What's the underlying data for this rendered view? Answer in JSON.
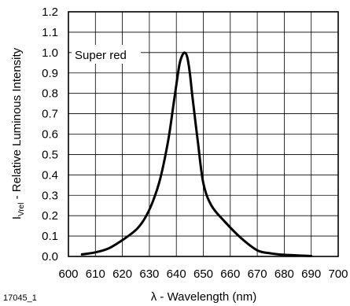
{
  "figure_id": "17045_1",
  "chart_data": {
    "type": "line",
    "title": "",
    "xlabel": "λ - Wavelength (nm)",
    "ylabel_main": "I",
    "ylabel_sub": "Vrel",
    "ylabel_rest": " - Relative Luminous Intensity",
    "xlim": [
      600,
      700
    ],
    "ylim": [
      0,
      1.2
    ],
    "grid": true,
    "x_ticks": [
      "600",
      "610",
      "620",
      "630",
      "640",
      "650",
      "660",
      "670",
      "680",
      "690",
      "700"
    ],
    "y_ticks": [
      "0.0",
      "0.1",
      "0.2",
      "0.3",
      "0.4",
      "0.5",
      "0.6",
      "0.7",
      "0.8",
      "0.9",
      "1.0",
      "1.1",
      "1.2"
    ],
    "annotations": [
      {
        "text": "Super red"
      }
    ],
    "series": [
      {
        "color": "#000000",
        "x": [
          605,
          610,
          615,
          620,
          625,
          628,
          631,
          634,
          637,
          639,
          641,
          642,
          643,
          644,
          645,
          646,
          648,
          650,
          653,
          658,
          664,
          670,
          675,
          680,
          690
        ],
        "y": [
          0.01,
          0.02,
          0.04,
          0.08,
          0.13,
          0.18,
          0.26,
          0.38,
          0.57,
          0.75,
          0.93,
          0.98,
          1.0,
          0.98,
          0.9,
          0.78,
          0.56,
          0.36,
          0.25,
          0.17,
          0.09,
          0.03,
          0.015,
          0.008,
          0.002
        ]
      }
    ]
  }
}
